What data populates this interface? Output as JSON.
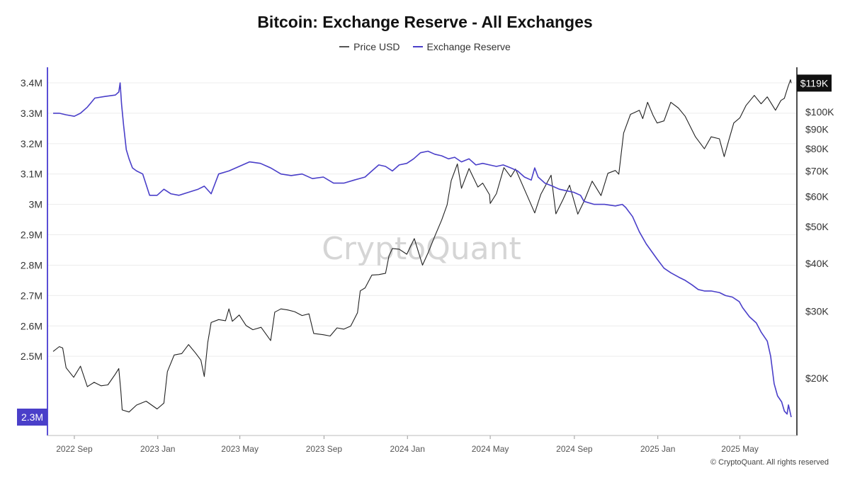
{
  "chart_data": {
    "type": "line",
    "title": "Bitcoin: Exchange Reserve - All Exchanges",
    "legend_position": "top-center",
    "grid": true,
    "watermark": "CryptoQuant",
    "copyright": "© CryptoQuant. All rights reserved",
    "x_ticks": [
      "2022 Sep",
      "2023 Jan",
      "2023 May",
      "2023 Sep",
      "2024 Jan",
      "2024 May",
      "2024 Sep",
      "2025 Jan",
      "2025 May"
    ],
    "xlim": [
      "2022-08-01",
      "2025-07-15"
    ],
    "left_axis": {
      "series": "Exchange Reserve",
      "ticks": [
        "2.5M",
        "2.6M",
        "2.7M",
        "2.8M",
        "2.9M",
        "3M",
        "3.1M",
        "3.2M",
        "3.3M",
        "3.4M"
      ],
      "ylim": [
        2.3,
        3.43
      ],
      "unit": "million BTC",
      "current_value_label": "2.3M"
    },
    "right_axis": {
      "series": "Price USD",
      "scale": "log",
      "ticks": [
        "$20K",
        "$30K",
        "$40K",
        "$50K",
        "$60K",
        "$70K",
        "$80K",
        "$90K",
        "$100K"
      ],
      "ylim": [
        14,
        125
      ],
      "unit": "thousand USD",
      "current_value_label": "$119K"
    },
    "series": [
      {
        "name": "Price USD",
        "color": "#222222",
        "axis": "right",
        "points": [
          [
            "2022-08-01",
            23.5
          ],
          [
            "2022-08-10",
            24.2
          ],
          [
            "2022-08-15",
            24.0
          ],
          [
            "2022-08-20",
            21.3
          ],
          [
            "2022-08-31",
            20.1
          ],
          [
            "2022-09-10",
            21.5
          ],
          [
            "2022-09-20",
            19.0
          ],
          [
            "2022-09-30",
            19.5
          ],
          [
            "2022-10-10",
            19.1
          ],
          [
            "2022-10-20",
            19.2
          ],
          [
            "2022-10-31",
            20.5
          ],
          [
            "2022-11-05",
            21.2
          ],
          [
            "2022-11-08",
            18.5
          ],
          [
            "2022-11-10",
            16.5
          ],
          [
            "2022-11-20",
            16.3
          ],
          [
            "2022-12-01",
            17.0
          ],
          [
            "2022-12-15",
            17.4
          ],
          [
            "2022-12-31",
            16.6
          ],
          [
            "2023-01-10",
            17.2
          ],
          [
            "2023-01-15",
            20.8
          ],
          [
            "2023-01-25",
            23.0
          ],
          [
            "2023-02-05",
            23.2
          ],
          [
            "2023-02-15",
            24.5
          ],
          [
            "2023-02-25",
            23.3
          ],
          [
            "2023-03-05",
            22.3
          ],
          [
            "2023-03-10",
            20.2
          ],
          [
            "2023-03-15",
            24.8
          ],
          [
            "2023-03-20",
            28.0
          ],
          [
            "2023-03-31",
            28.5
          ],
          [
            "2023-04-10",
            28.3
          ],
          [
            "2023-04-15",
            30.4
          ],
          [
            "2023-04-20",
            28.2
          ],
          [
            "2023-04-30",
            29.3
          ],
          [
            "2023-05-10",
            27.5
          ],
          [
            "2023-05-20",
            26.8
          ],
          [
            "2023-06-01",
            27.2
          ],
          [
            "2023-06-15",
            25.1
          ],
          [
            "2023-06-21",
            29.8
          ],
          [
            "2023-06-30",
            30.4
          ],
          [
            "2023-07-10",
            30.2
          ],
          [
            "2023-07-20",
            29.9
          ],
          [
            "2023-07-31",
            29.2
          ],
          [
            "2023-08-10",
            29.5
          ],
          [
            "2023-08-17",
            26.2
          ],
          [
            "2023-08-31",
            26.0
          ],
          [
            "2023-09-10",
            25.8
          ],
          [
            "2023-09-20",
            27.1
          ],
          [
            "2023-09-30",
            26.9
          ],
          [
            "2023-10-10",
            27.4
          ],
          [
            "2023-10-20",
            29.7
          ],
          [
            "2023-10-24",
            33.9
          ],
          [
            "2023-10-31",
            34.5
          ],
          [
            "2023-11-10",
            37.3
          ],
          [
            "2023-11-20",
            37.4
          ],
          [
            "2023-11-30",
            37.7
          ],
          [
            "2023-12-05",
            41.9
          ],
          [
            "2023-12-10",
            43.8
          ],
          [
            "2023-12-20",
            43.6
          ],
          [
            "2023-12-31",
            42.3
          ],
          [
            "2024-01-11",
            46.5
          ],
          [
            "2024-01-23",
            39.6
          ],
          [
            "2024-01-31",
            42.6
          ],
          [
            "2024-02-10",
            47.2
          ],
          [
            "2024-02-20",
            52.0
          ],
          [
            "2024-02-28",
            57.0
          ],
          [
            "2024-03-05",
            66.0
          ],
          [
            "2024-03-14",
            73.0
          ],
          [
            "2024-03-20",
            63.0
          ],
          [
            "2024-03-31",
            71.0
          ],
          [
            "2024-04-13",
            63.5
          ],
          [
            "2024-04-20",
            65.0
          ],
          [
            "2024-04-30",
            60.6
          ],
          [
            "2024-05-01",
            57.5
          ],
          [
            "2024-05-10",
            61.0
          ],
          [
            "2024-05-21",
            71.4
          ],
          [
            "2024-05-31",
            67.5
          ],
          [
            "2024-06-07",
            70.8
          ],
          [
            "2024-06-24",
            60.3
          ],
          [
            "2024-07-05",
            54.3
          ],
          [
            "2024-07-14",
            60.8
          ],
          [
            "2024-07-29",
            68.2
          ],
          [
            "2024-08-05",
            54.0
          ],
          [
            "2024-08-15",
            58.7
          ],
          [
            "2024-08-25",
            64.2
          ],
          [
            "2024-09-06",
            53.9
          ],
          [
            "2024-09-15",
            58.2
          ],
          [
            "2024-09-27",
            65.8
          ],
          [
            "2024-10-10",
            60.3
          ],
          [
            "2024-10-20",
            69.0
          ],
          [
            "2024-10-31",
            70.2
          ],
          [
            "2024-11-05",
            68.6
          ],
          [
            "2024-11-12",
            88.0
          ],
          [
            "2024-11-22",
            98.5
          ],
          [
            "2024-12-05",
            101.0
          ],
          [
            "2024-12-10",
            96.0
          ],
          [
            "2024-12-17",
            106.0
          ],
          [
            "2024-12-25",
            98.0
          ],
          [
            "2024-12-31",
            93.5
          ],
          [
            "2025-01-10",
            94.7
          ],
          [
            "2025-01-20",
            106.0
          ],
          [
            "2025-01-31",
            102.4
          ],
          [
            "2025-02-10",
            97.4
          ],
          [
            "2025-02-25",
            86.0
          ],
          [
            "2025-03-10",
            80.0
          ],
          [
            "2025-03-20",
            86.0
          ],
          [
            "2025-04-01",
            85.0
          ],
          [
            "2025-04-08",
            76.3
          ],
          [
            "2025-04-15",
            84.5
          ],
          [
            "2025-04-22",
            93.5
          ],
          [
            "2025-05-01",
            96.5
          ],
          [
            "2025-05-10",
            104.0
          ],
          [
            "2025-05-22",
            110.5
          ],
          [
            "2025-06-01",
            105.0
          ],
          [
            "2025-06-10",
            109.5
          ],
          [
            "2025-06-22",
            101.0
          ],
          [
            "2025-06-30",
            107.2
          ],
          [
            "2025-07-05",
            108.5
          ],
          [
            "2025-07-10",
            116.0
          ],
          [
            "2025-07-14",
            121.5
          ],
          [
            "2025-07-15",
            119.0
          ]
        ]
      },
      {
        "name": "Exchange Reserve",
        "color": "#4a3fc9",
        "axis": "left",
        "points": [
          [
            "2022-08-01",
            3.3
          ],
          [
            "2022-08-10",
            3.3
          ],
          [
            "2022-08-20",
            3.295
          ],
          [
            "2022-09-01",
            3.29
          ],
          [
            "2022-09-10",
            3.3
          ],
          [
            "2022-09-20",
            3.32
          ],
          [
            "2022-10-01",
            3.35
          ],
          [
            "2022-10-15",
            3.355
          ],
          [
            "2022-10-31",
            3.36
          ],
          [
            "2022-11-05",
            3.37
          ],
          [
            "2022-11-07",
            3.4
          ],
          [
            "2022-11-09",
            3.33
          ],
          [
            "2022-11-12",
            3.26
          ],
          [
            "2022-11-16",
            3.18
          ],
          [
            "2022-11-20",
            3.15
          ],
          [
            "2022-11-25",
            3.12
          ],
          [
            "2022-12-01",
            3.11
          ],
          [
            "2022-12-10",
            3.1
          ],
          [
            "2022-12-20",
            3.03
          ],
          [
            "2022-12-31",
            3.03
          ],
          [
            "2023-01-10",
            3.05
          ],
          [
            "2023-01-20",
            3.035
          ],
          [
            "2023-02-01",
            3.03
          ],
          [
            "2023-02-15",
            3.04
          ],
          [
            "2023-03-01",
            3.05
          ],
          [
            "2023-03-10",
            3.06
          ],
          [
            "2023-03-20",
            3.035
          ],
          [
            "2023-03-31",
            3.1
          ],
          [
            "2023-04-15",
            3.11
          ],
          [
            "2023-04-30",
            3.125
          ],
          [
            "2023-05-15",
            3.14
          ],
          [
            "2023-05-31",
            3.135
          ],
          [
            "2023-06-15",
            3.12
          ],
          [
            "2023-06-30",
            3.1
          ],
          [
            "2023-07-15",
            3.095
          ],
          [
            "2023-07-31",
            3.1
          ],
          [
            "2023-08-15",
            3.085
          ],
          [
            "2023-08-31",
            3.09
          ],
          [
            "2023-09-15",
            3.07
          ],
          [
            "2023-09-30",
            3.07
          ],
          [
            "2023-10-15",
            3.08
          ],
          [
            "2023-10-31",
            3.09
          ],
          [
            "2023-11-10",
            3.11
          ],
          [
            "2023-11-20",
            3.13
          ],
          [
            "2023-11-30",
            3.125
          ],
          [
            "2023-12-10",
            3.11
          ],
          [
            "2023-12-20",
            3.13
          ],
          [
            "2023-12-31",
            3.135
          ],
          [
            "2024-01-10",
            3.15
          ],
          [
            "2024-01-20",
            3.17
          ],
          [
            "2024-01-31",
            3.175
          ],
          [
            "2024-02-10",
            3.165
          ],
          [
            "2024-02-20",
            3.16
          ],
          [
            "2024-03-01",
            3.15
          ],
          [
            "2024-03-10",
            3.155
          ],
          [
            "2024-03-20",
            3.14
          ],
          [
            "2024-03-31",
            3.15
          ],
          [
            "2024-04-10",
            3.13
          ],
          [
            "2024-04-20",
            3.135
          ],
          [
            "2024-04-30",
            3.13
          ],
          [
            "2024-05-10",
            3.125
          ],
          [
            "2024-05-20",
            3.13
          ],
          [
            "2024-05-31",
            3.12
          ],
          [
            "2024-06-10",
            3.11
          ],
          [
            "2024-06-20",
            3.09
          ],
          [
            "2024-06-30",
            3.08
          ],
          [
            "2024-07-05",
            3.12
          ],
          [
            "2024-07-10",
            3.09
          ],
          [
            "2024-07-20",
            3.07
          ],
          [
            "2024-07-31",
            3.06
          ],
          [
            "2024-08-10",
            3.05
          ],
          [
            "2024-08-20",
            3.045
          ],
          [
            "2024-08-31",
            3.04
          ],
          [
            "2024-09-10",
            3.03
          ],
          [
            "2024-09-15",
            3.01
          ],
          [
            "2024-09-30",
            3.0
          ],
          [
            "2024-10-15",
            3.0
          ],
          [
            "2024-10-31",
            2.995
          ],
          [
            "2024-11-10",
            3.0
          ],
          [
            "2024-11-15",
            2.99
          ],
          [
            "2024-11-25",
            2.96
          ],
          [
            "2024-12-05",
            2.91
          ],
          [
            "2024-12-15",
            2.87
          ],
          [
            "2024-12-31",
            2.82
          ],
          [
            "2025-01-10",
            2.79
          ],
          [
            "2025-01-20",
            2.775
          ],
          [
            "2025-02-01",
            2.76
          ],
          [
            "2025-02-10",
            2.75
          ],
          [
            "2025-02-20",
            2.735
          ],
          [
            "2025-03-01",
            2.72
          ],
          [
            "2025-03-10",
            2.715
          ],
          [
            "2025-03-20",
            2.715
          ],
          [
            "2025-04-01",
            2.71
          ],
          [
            "2025-04-10",
            2.7
          ],
          [
            "2025-04-20",
            2.695
          ],
          [
            "2025-04-30",
            2.68
          ],
          [
            "2025-05-05",
            2.66
          ],
          [
            "2025-05-15",
            2.63
          ],
          [
            "2025-05-25",
            2.61
          ],
          [
            "2025-06-01",
            2.58
          ],
          [
            "2025-06-10",
            2.55
          ],
          [
            "2025-06-15",
            2.5
          ],
          [
            "2025-06-20",
            2.41
          ],
          [
            "2025-06-25",
            2.37
          ],
          [
            "2025-07-01",
            2.35
          ],
          [
            "2025-07-05",
            2.32
          ],
          [
            "2025-07-09",
            2.31
          ],
          [
            "2025-07-11",
            2.34
          ],
          [
            "2025-07-13",
            2.32
          ],
          [
            "2025-07-15",
            2.3
          ]
        ]
      }
    ]
  }
}
